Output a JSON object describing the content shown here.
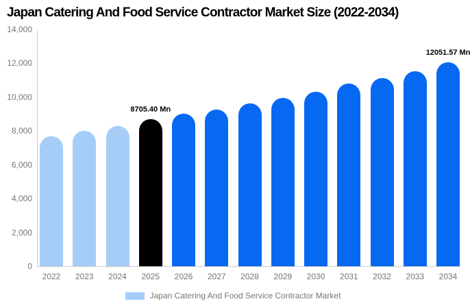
{
  "chart_data": {
    "type": "bar",
    "title": "Japan Catering And Food Service Contractor Market Size (2022-2034)",
    "unit": "Mn",
    "categories": [
      "2022",
      "2023",
      "2024",
      "2025",
      "2026",
      "2027",
      "2028",
      "2029",
      "2030",
      "2031",
      "2032",
      "2033",
      "2034"
    ],
    "values": [
      7700,
      8010,
      8310,
      8705.4,
      9010,
      9270,
      9610,
      9970,
      10300,
      10790,
      11130,
      11530,
      12051.57
    ],
    "bar_colors": [
      "#A6CDF8",
      "#A6CDF8",
      "#A6CDF8",
      "#000000",
      "#0769F2",
      "#0769F2",
      "#0769F2",
      "#0769F2",
      "#0769F2",
      "#0769F2",
      "#0769F2",
      "#0769F2",
      "#0769F2"
    ],
    "data_labels": [
      {
        "category": "2025",
        "text": "8705.40 Mn"
      },
      {
        "category": "2034",
        "text": "12051.57 Mn"
      }
    ],
    "xlabel": "",
    "ylabel": "",
    "ylim": [
      0,
      14000
    ],
    "ytick_interval": 2000,
    "ytick_labels": [
      "0",
      "2,000",
      "4,000",
      "6,000",
      "8,000",
      "10,000",
      "12,000",
      "14,000"
    ],
    "grid": false,
    "legend": {
      "position": "bottom",
      "items": [
        {
          "label": "Japan Catering And Food Service Contractor Market",
          "color": "#A6CDF8"
        }
      ]
    }
  },
  "colors": {
    "background": "#ffffff",
    "axis_line": "#cccccc",
    "axis_text": "#757575",
    "title_text": "#000000",
    "historical_bar": "#A6CDF8",
    "base_year_bar": "#000000",
    "forecast_bar": "#0769F2"
  }
}
